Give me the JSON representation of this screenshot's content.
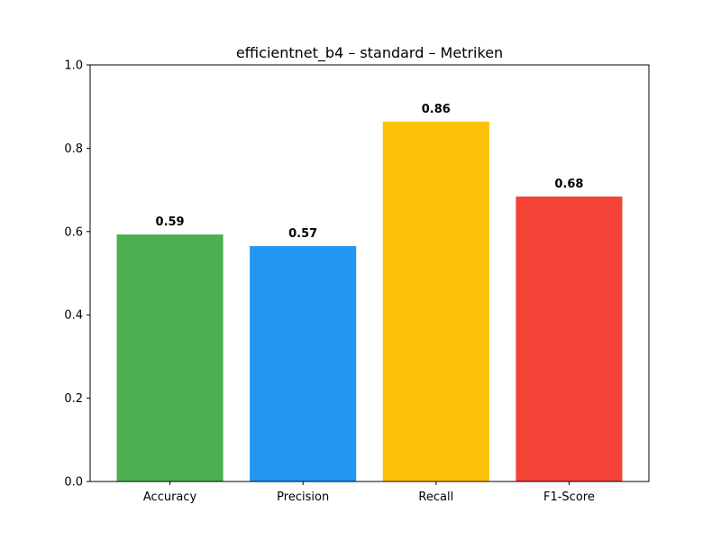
{
  "chart_data": {
    "type": "bar",
    "title": "efficientnet_b4 – standard – Metriken",
    "xlabel": "",
    "ylabel": "",
    "categories": [
      "Accuracy",
      "Precision",
      "Recall",
      "F1-Score"
    ],
    "values": [
      0.593,
      0.565,
      0.864,
      0.684
    ],
    "value_labels": [
      "0.59",
      "0.57",
      "0.86",
      "0.68"
    ],
    "colors": [
      "#4CAF50",
      "#2196F3",
      "#FFC107",
      "#F44336"
    ],
    "ylim": [
      0.0,
      1.0
    ],
    "yticks": [
      0.0,
      0.2,
      0.4,
      0.6,
      0.8,
      1.0
    ],
    "ytick_labels": [
      "0.0",
      "0.2",
      "0.4",
      "0.6",
      "0.8",
      "1.0"
    ],
    "grid": false,
    "legend": "none"
  }
}
